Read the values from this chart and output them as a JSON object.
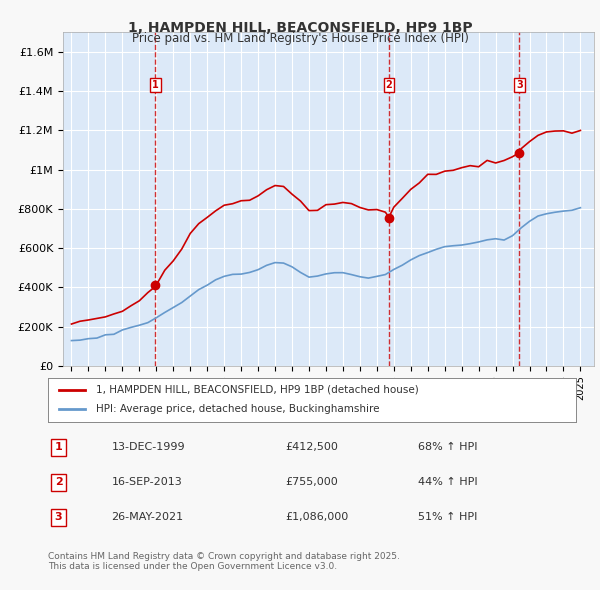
{
  "title": "1, HAMPDEN HILL, BEACONSFIELD, HP9 1BP",
  "subtitle": "Price paid vs. HM Land Registry's House Price Index (HPI)",
  "red_label": "1, HAMPDEN HILL, BEACONSFIELD, HP9 1BP (detached house)",
  "blue_label": "HPI: Average price, detached house, Buckinghamshire",
  "sale_label": "1",
  "sale1": {
    "date_num": 1999.95,
    "price": 412500,
    "label": "1",
    "text_date": "13-DEC-1999",
    "text_price": "£412,500",
    "text_hpi": "68% ↑ HPI"
  },
  "sale2": {
    "date_num": 2013.71,
    "price": 755000,
    "label": "2",
    "text_date": "16-SEP-2013",
    "text_price": "£755,000",
    "text_hpi": "44% ↑ HPI"
  },
  "sale3": {
    "date_num": 2021.4,
    "price": 1086000,
    "label": "3",
    "text_date": "26-MAY-2021",
    "text_price": "£1,086,000",
    "text_hpi": "51% ↑ HPI"
  },
  "ylim": [
    0,
    1700000
  ],
  "yticks": [
    0,
    200000,
    400000,
    600000,
    800000,
    1000000,
    1200000,
    1400000,
    1600000
  ],
  "ytick_labels": [
    "£0",
    "£200K",
    "£400K",
    "£600K",
    "£800K",
    "£1M",
    "£1.2M",
    "£1.4M",
    "£1.6M"
  ],
  "xlim_start": 1994.5,
  "xlim_end": 2025.8,
  "background_color": "#dce9f8",
  "plot_bg_color": "#dce9f8",
  "red_color": "#cc0000",
  "blue_color": "#6699cc",
  "grid_color": "#ffffff",
  "footnote": "Contains HM Land Registry data © Crown copyright and database right 2025.\nThis data is licensed under the Open Government Licence v3.0.",
  "red_line_data": {
    "years": [
      1995.0,
      1995.5,
      1996.0,
      1996.5,
      1997.0,
      1997.5,
      1998.0,
      1998.5,
      1999.0,
      1999.5,
      1999.95,
      2000.5,
      2001.0,
      2001.5,
      2002.0,
      2002.5,
      2003.0,
      2003.5,
      2004.0,
      2004.5,
      2005.0,
      2005.5,
      2006.0,
      2006.5,
      2007.0,
      2007.5,
      2008.0,
      2008.5,
      2009.0,
      2009.5,
      2010.0,
      2010.5,
      2011.0,
      2011.5,
      2012.0,
      2012.5,
      2013.0,
      2013.5,
      2013.71,
      2014.0,
      2014.5,
      2015.0,
      2015.5,
      2016.0,
      2016.5,
      2017.0,
      2017.5,
      2018.0,
      2018.5,
      2019.0,
      2019.5,
      2020.0,
      2020.5,
      2021.0,
      2021.4,
      2021.5,
      2022.0,
      2022.5,
      2023.0,
      2023.5,
      2024.0,
      2024.5,
      2025.0
    ],
    "values": [
      215000,
      220000,
      230000,
      240000,
      255000,
      270000,
      285000,
      300000,
      330000,
      370000,
      412500,
      480000,
      530000,
      600000,
      680000,
      730000,
      760000,
      790000,
      820000,
      830000,
      840000,
      850000,
      870000,
      900000,
      920000,
      910000,
      880000,
      840000,
      790000,
      800000,
      820000,
      830000,
      840000,
      820000,
      800000,
      790000,
      800000,
      790000,
      755000,
      810000,
      860000,
      900000,
      940000,
      970000,
      980000,
      990000,
      1000000,
      1010000,
      1020000,
      1020000,
      1040000,
      1030000,
      1040000,
      1060000,
      1086000,
      1100000,
      1150000,
      1180000,
      1200000,
      1200000,
      1200000,
      1190000,
      1195000
    ]
  },
  "blue_line_data": {
    "years": [
      1995.0,
      1995.5,
      1996.0,
      1996.5,
      1997.0,
      1997.5,
      1998.0,
      1998.5,
      1999.0,
      1999.5,
      2000.0,
      2000.5,
      2001.0,
      2001.5,
      2002.0,
      2002.5,
      2003.0,
      2003.5,
      2004.0,
      2004.5,
      2005.0,
      2005.5,
      2006.0,
      2006.5,
      2007.0,
      2007.5,
      2008.0,
      2008.5,
      2009.0,
      2009.5,
      2010.0,
      2010.5,
      2011.0,
      2011.5,
      2012.0,
      2012.5,
      2013.0,
      2013.5,
      2014.0,
      2014.5,
      2015.0,
      2015.5,
      2016.0,
      2016.5,
      2017.0,
      2017.5,
      2018.0,
      2018.5,
      2019.0,
      2019.5,
      2020.0,
      2020.5,
      2021.0,
      2021.5,
      2022.0,
      2022.5,
      2023.0,
      2023.5,
      2024.0,
      2024.5,
      2025.0
    ],
    "values": [
      130000,
      133000,
      138000,
      145000,
      155000,
      165000,
      178000,
      193000,
      210000,
      225000,
      242000,
      270000,
      295000,
      320000,
      360000,
      390000,
      415000,
      435000,
      455000,
      468000,
      472000,
      478000,
      492000,
      510000,
      525000,
      520000,
      505000,
      480000,
      450000,
      455000,
      468000,
      472000,
      475000,
      465000,
      455000,
      452000,
      460000,
      470000,
      490000,
      515000,
      540000,
      558000,
      580000,
      595000,
      605000,
      615000,
      620000,
      625000,
      635000,
      638000,
      645000,
      640000,
      660000,
      700000,
      740000,
      760000,
      775000,
      780000,
      785000,
      795000,
      810000
    ]
  }
}
